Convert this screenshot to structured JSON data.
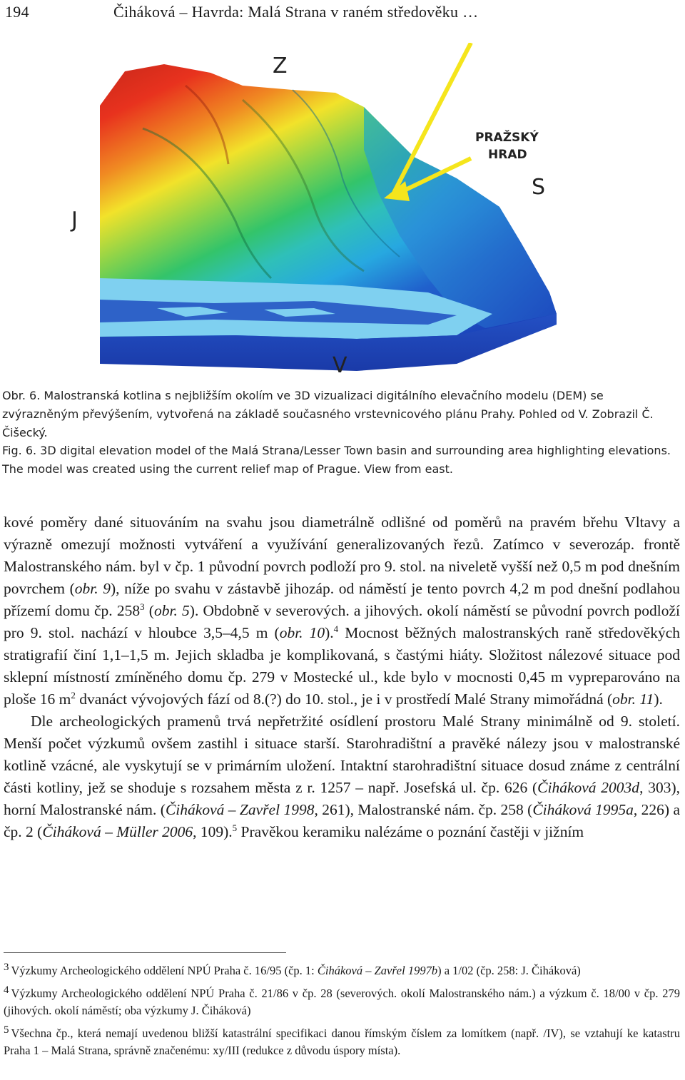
{
  "header": {
    "page_number": "194",
    "running_title": "Čiháková – Havrda: Malá Strana v raném středověku …"
  },
  "figure": {
    "labels": {
      "north": "Z",
      "west": "J",
      "south": "S",
      "east": "V",
      "castle_line1": "PRAŽSKÝ",
      "castle_line2": "HRAD"
    },
    "colors": {
      "high": "#e8321e",
      "mid_high": "#f2e22a",
      "mid": "#33c46a",
      "mid_low": "#27a8e0",
      "low": "#1a3fb8",
      "river": "#7fd0f0",
      "arrow": "#f5e51c"
    }
  },
  "caption_cz": "Obr. 6. Malostranská kotlina s nejbližším okolím ve 3D vizualizaci digitálního elevačního modelu (DEM) se zvýrazněným převýšením, vytvořená na základě současného vrstevnicového plánu Prahy. Pohled od V. Zobrazil Č. Čišecký.",
  "caption_en": "Fig. 6. 3D digital elevation model of the Malá Strana/Lesser Town basin and surrounding area highlighting elevations. The model was created using the current relief map of Prague. View from east.",
  "body": {
    "p1": {
      "t1": "kové poměry dané situováním na svahu jsou diametrálně odlišné od poměrů na pravém břehu Vltavy a výrazně omezují možnosti vytváření a využívání generalizovaných řezů. Zatímco v severozáp. frontě Malostranského nám. byl v čp. 1 původní povrch podloží pro 9. stol. na niveletě vyšší než 0,5 m pod dnešním povrchem (",
      "i1": "obr. 9",
      "t2": "), níže po svahu v zástavbě jihozáp. od náměstí je tento povrch 4,2 m pod dnešní podlahou přízemí domu čp. 258",
      "s1": "3",
      "t3": " (",
      "i2": "obr. 5",
      "t4": "). Obdobně v severových. a jihových. okolí náměstí se původní povrch podloží pro 9. stol. nachází v hloubce 3,5–4,5 m (",
      "i3": "obr. 10",
      "t5": ").",
      "s2": "4",
      "t6": " Mocnost běžných malostranských raně středověkých stratigrafií činí 1,1–1,5 m. Jejich skladba je komplikovaná, s častými hiáty. Složitost nálezové situace pod sklepní místností zmíněného domu čp. 279 v Mostecké ul., kde bylo v mocnosti 0,45 m vypreparováno na ploše 16 m",
      "s3": "2",
      "t7": " dvanáct vývojových fází od 8.(?) do 10. stol., je i v prostředí Malé Strany mimořádná (",
      "i4": "obr. 11",
      "t8": ")."
    },
    "p2": {
      "t1": "Dle archeologických pramenů trvá nepřetržité osídlení prostoru Malé Strany minimálně od 9. století. Menší počet výzkumů ovšem zastihl i situace starší. Starohradištní a pravěké nálezy jsou v malostranské kotlině vzácné, ale vyskytují se v primárním uložení. Intaktní starohradištní situace dosud známe z centrální části kotliny, jež se shoduje s rozsahem města z r. 1257 – např. Josefská ul. čp. 626 (",
      "i1": "Čiháková 2003d",
      "t2": ", 303), horní Malostranské nám. (",
      "i2": "Čiháková – Zavřel 1998",
      "t3": ", 261), Malostranské nám. čp. 258 (",
      "i3": "Čiháková 1995a",
      "t4": ", 226) a čp. 2 (",
      "i4": "Čiháková – Müller 2006",
      "t5": ", 109).",
      "s1": "5",
      "t6": " Pravěkou keramiku nalézáme o poznání častěji v jižním"
    }
  },
  "footnotes": {
    "fn3": {
      "num": "3",
      "t1": "Výzkumy Archeologického oddělení NPÚ Praha č. 16/95 (čp. 1: ",
      "i1": "Čiháková – Zavřel 1997b",
      "t2": ") a 1/02 (čp. 258: J. Čiháková)"
    },
    "fn4": {
      "num": "4",
      "t1": "Výzkumy Archeologického oddělení NPÚ Praha č. 21/86 v čp. 28 (severových. okolí Malostranského nám.) a výzkum č. 18/00 v čp. 279 (jihových. okolí náměstí; oba výzkumy J. Čiháková)"
    },
    "fn5": {
      "num": "5",
      "t1": "Všechna čp., která nemají uvedenou bližší katastrální specifikaci danou římským číslem za lomítkem (např. /IV), se vztahují ke katastru Praha 1 – Malá Strana, správně značenému: xy/III (redukce z důvodu úspory místa)."
    }
  }
}
